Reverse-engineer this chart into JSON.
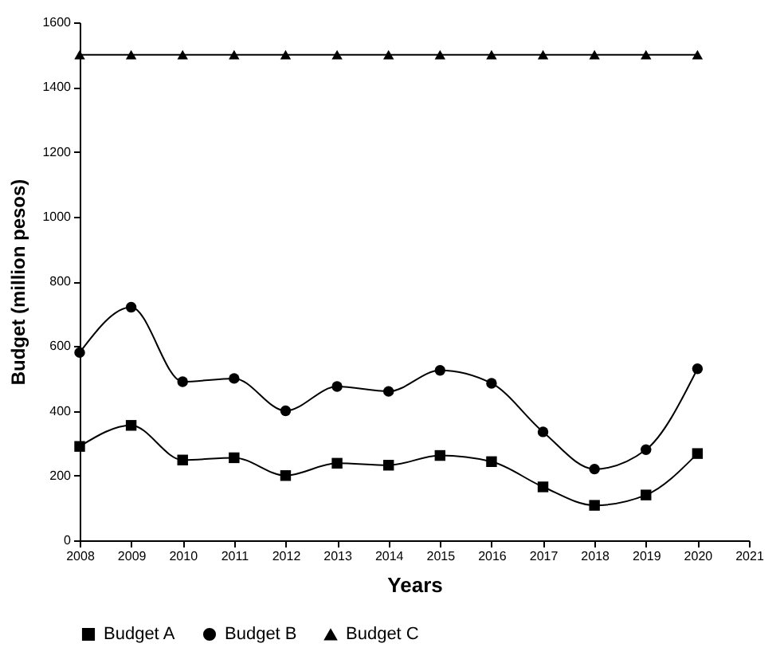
{
  "chart_data": {
    "type": "line",
    "xlabel": "Years",
    "ylabel": "Budget (million pesos)",
    "x": [
      2008,
      2009,
      2010,
      2011,
      2012,
      2013,
      2014,
      2015,
      2016,
      2017,
      2018,
      2019,
      2020
    ],
    "xlim": [
      2008,
      2021
    ],
    "xticks": [
      2008,
      2009,
      2010,
      2011,
      2012,
      2013,
      2014,
      2015,
      2016,
      2017,
      2018,
      2019,
      2020,
      2021
    ],
    "ylim": [
      0,
      1600
    ],
    "yticks": [
      0,
      200,
      400,
      600,
      800,
      1000,
      1200,
      1400,
      1600
    ],
    "grid": false,
    "legend": "bottom",
    "line_style": "solid",
    "series": [
      {
        "name": "Budget A",
        "color": "#000000",
        "marker": "square",
        "values": [
          290,
          355,
          248,
          255,
          200,
          238,
          232,
          262,
          243,
          165,
          108,
          140,
          268
        ]
      },
      {
        "name": "Budget B",
        "color": "#000000",
        "marker": "circle",
        "values": [
          580,
          720,
          490,
          500,
          400,
          475,
          460,
          525,
          485,
          335,
          220,
          280,
          530
        ]
      },
      {
        "name": "Budget C",
        "color": "#000000",
        "marker": "triangle",
        "values": [
          1500,
          1500,
          1500,
          1500,
          1500,
          1500,
          1500,
          1500,
          1500,
          1500,
          1500,
          1500,
          1500
        ]
      }
    ]
  }
}
